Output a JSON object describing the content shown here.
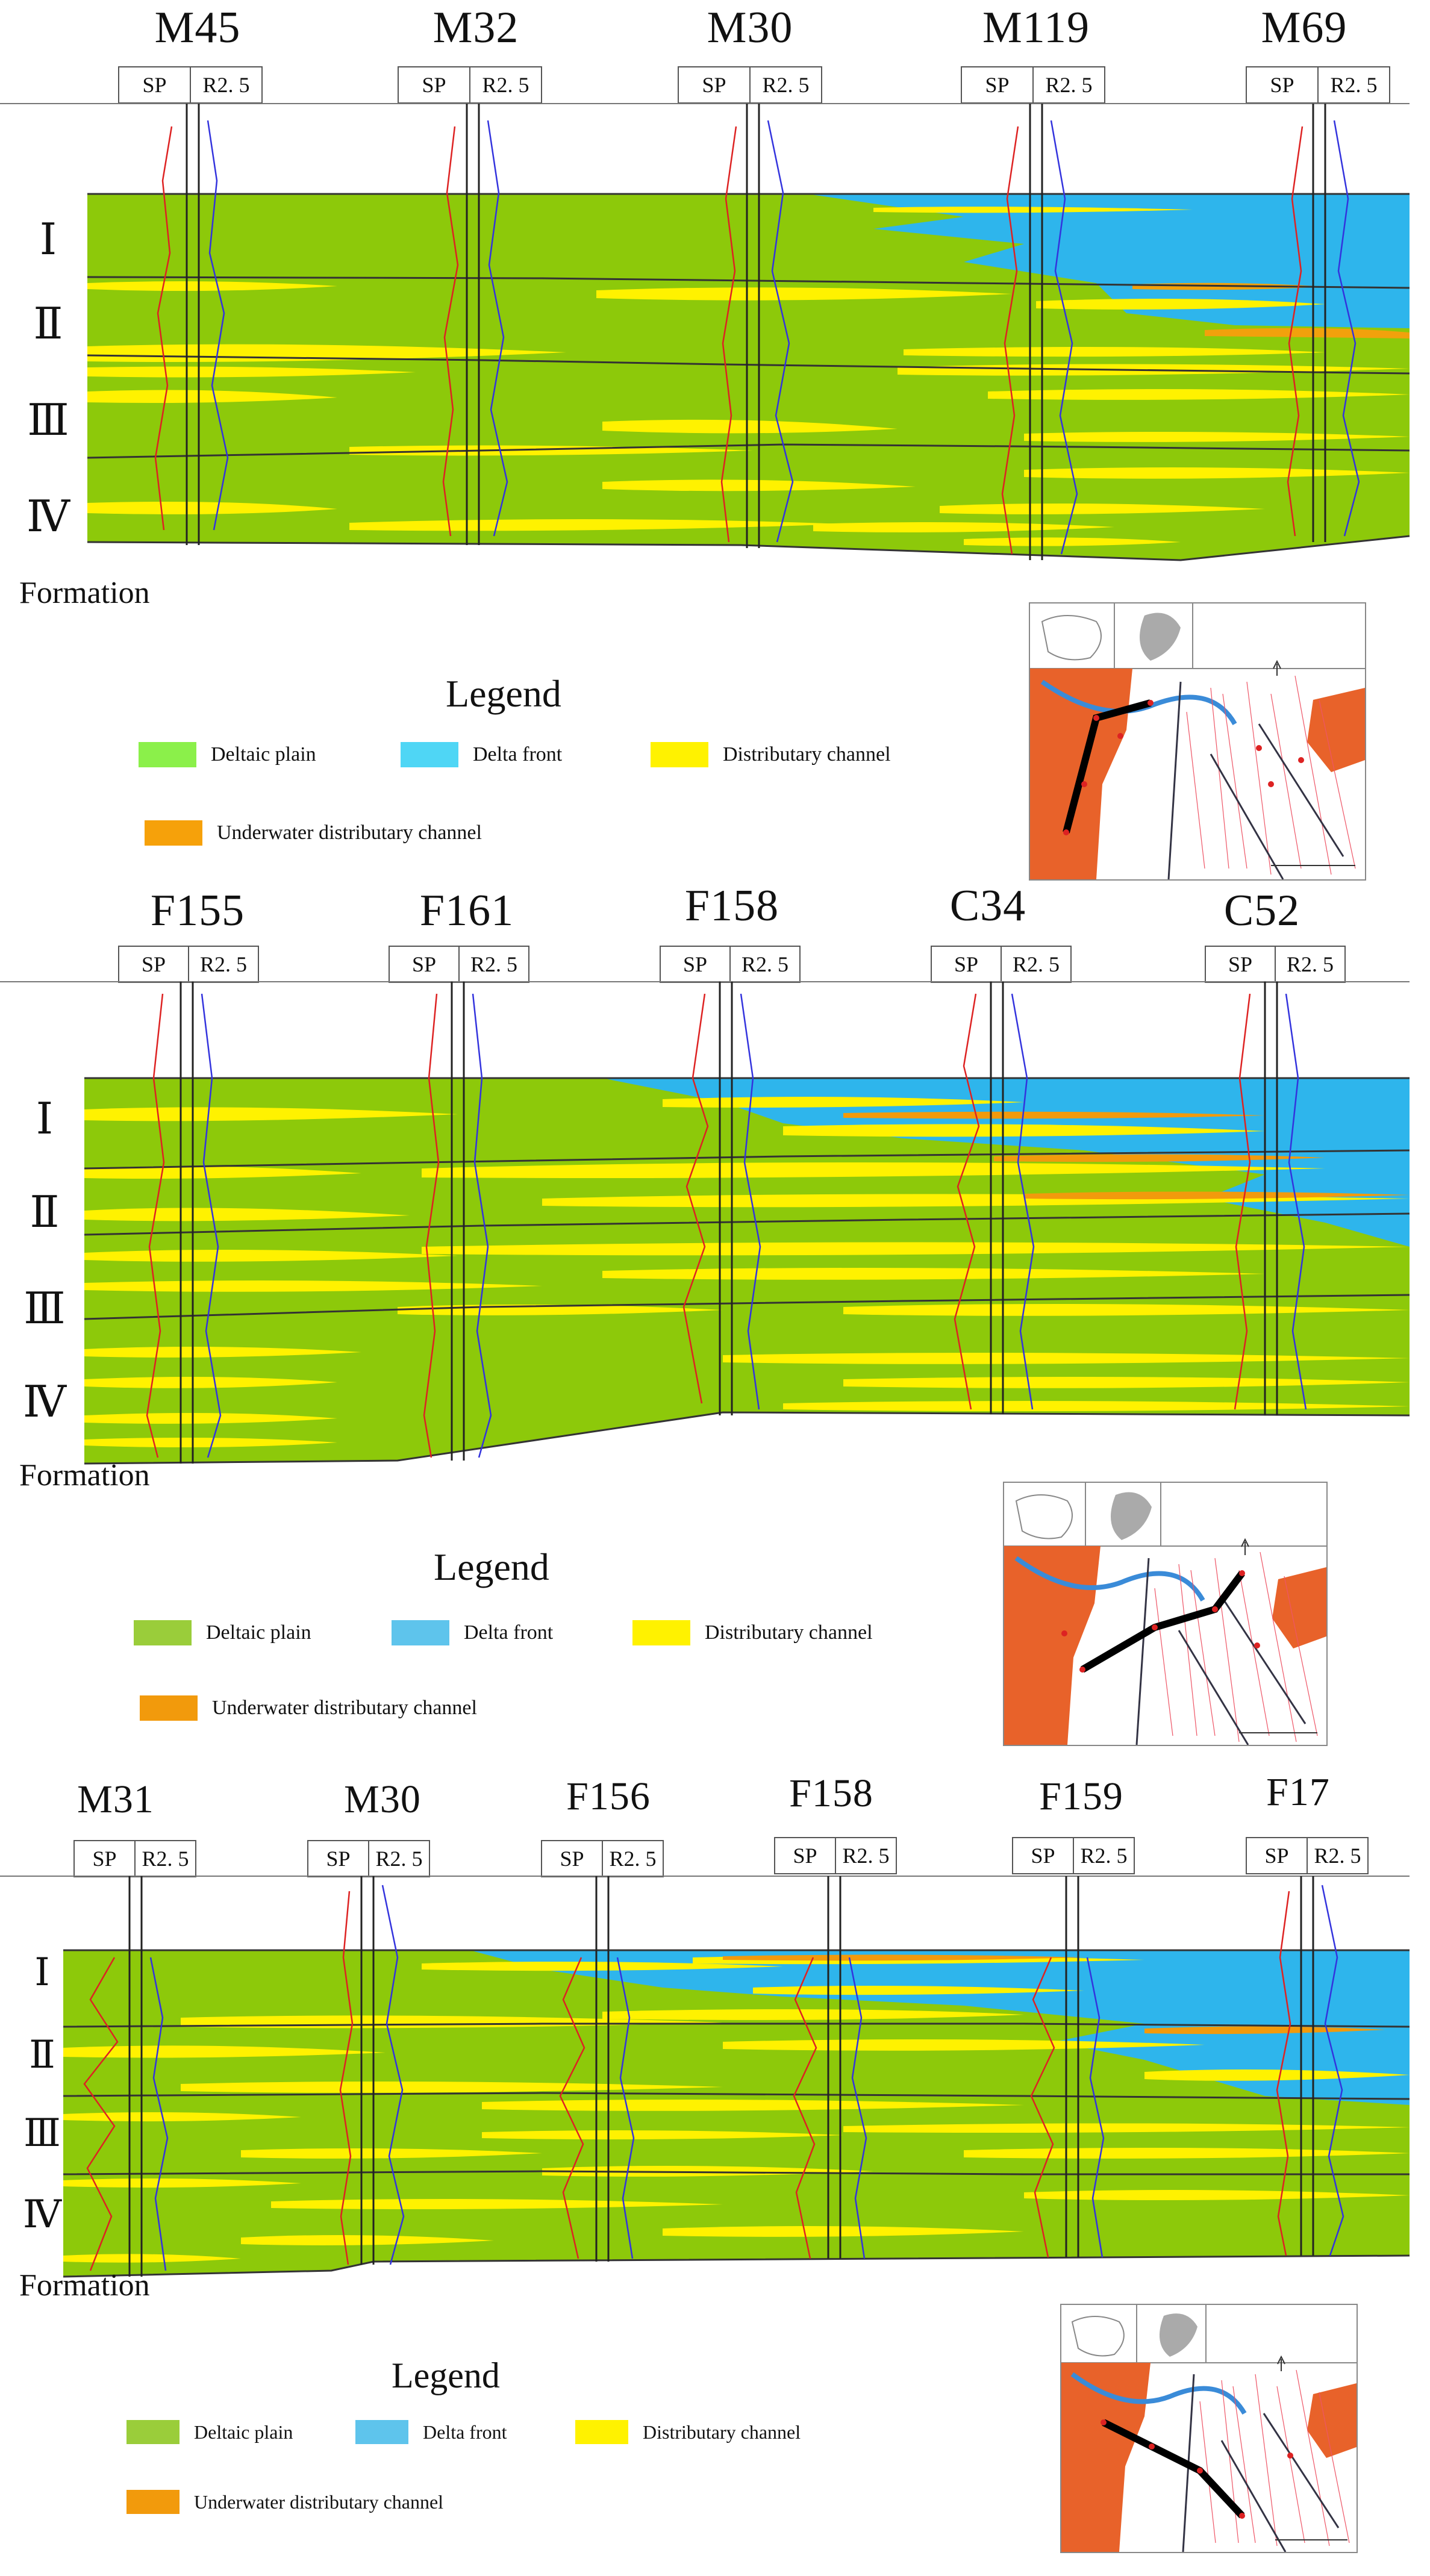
{
  "panels": [
    {
      "wells": [
        "M45",
        "M32",
        "M30",
        "M119",
        "M69"
      ],
      "log_sp": "SP",
      "log_r": "R2. 5",
      "formations": [
        "Ⅰ",
        "Ⅱ",
        "Ⅲ",
        "Ⅳ"
      ],
      "formation_label": "Formation",
      "legend_title": "Legend",
      "legend": [
        {
          "label": "Deltaic plain",
          "color": "#8BF04A"
        },
        {
          "label": "Delta front",
          "color": "#4FD6F5"
        },
        {
          "label": "Distributary channel",
          "color": "#FFF200"
        },
        {
          "label": "Underwater distributary channel",
          "color": "#F6A10A"
        }
      ]
    },
    {
      "wells": [
        "F155",
        "F161",
        "F158",
        "C34",
        "C52"
      ],
      "log_sp": "SP",
      "log_r": "R2. 5",
      "formations": [
        "Ⅰ",
        "Ⅱ",
        "Ⅲ",
        "Ⅳ"
      ],
      "formation_label": "Formation",
      "legend_title": "Legend",
      "legend": [
        {
          "label": "Deltaic plain",
          "color": "#9ACD3A"
        },
        {
          "label": "Delta front",
          "color": "#5EC4EC"
        },
        {
          "label": "Distributary channel",
          "color": "#FFF200"
        },
        {
          "label": "Underwater distributary channel",
          "color": "#F29A0C"
        }
      ]
    },
    {
      "wells": [
        "M31",
        "M30",
        "F156",
        "F158",
        "F159",
        "F17"
      ],
      "log_sp": "SP",
      "log_r": "R2. 5",
      "formations": [
        "Ⅰ",
        "Ⅱ",
        "Ⅲ",
        "Ⅳ"
      ],
      "formation_label": "Formation",
      "legend_title": "Legend",
      "legend": [
        {
          "label": "Deltaic plain",
          "color": "#9ACD3A"
        },
        {
          "label": "Delta front",
          "color": "#5EC4EC"
        },
        {
          "label": "Distributary channel",
          "color": "#FFF200"
        },
        {
          "label": "Underwater distributary channel",
          "color": "#F29A0C"
        }
      ]
    }
  ],
  "colors": {
    "plain": "#8DC90A",
    "front": "#2EB5EC",
    "channel": "#FFF200",
    "underwater": "#F2A10C",
    "map_orange": "#E8622A"
  }
}
